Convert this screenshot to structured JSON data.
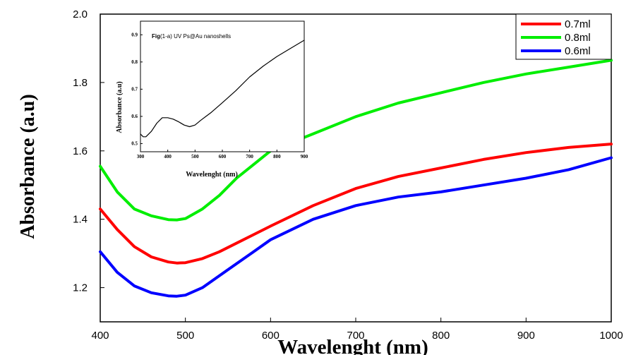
{
  "chart_data": [
    {
      "type": "line",
      "title": "",
      "xlabel": "Wavelenght (nm)",
      "ylabel": "Absorbance (a.u)",
      "xlim": [
        400,
        1000
      ],
      "ylim": [
        1.1,
        2.0
      ],
      "x_ticks": [
        "400",
        "500",
        "600",
        "700",
        "800",
        "900",
        "1000"
      ],
      "y_ticks": [
        "1.2",
        "1.4",
        "1.6",
        "1.8",
        "2.0"
      ],
      "grid": false,
      "legend_position": "top-right",
      "x": [
        400,
        420,
        440,
        460,
        480,
        490,
        500,
        520,
        540,
        560,
        580,
        600,
        650,
        700,
        750,
        800,
        850,
        900,
        950,
        1000
      ],
      "series": [
        {
          "name": "0.7ml",
          "color": "#ff0000",
          "values": [
            1.43,
            1.37,
            1.32,
            1.29,
            1.275,
            1.272,
            1.273,
            1.285,
            1.305,
            1.33,
            1.355,
            1.38,
            1.44,
            1.49,
            1.525,
            1.55,
            1.575,
            1.595,
            1.61,
            1.62
          ]
        },
        {
          "name": "0.8ml",
          "color": "#00ee00",
          "values": [
            1.555,
            1.48,
            1.43,
            1.41,
            1.399,
            1.398,
            1.402,
            1.43,
            1.47,
            1.52,
            1.56,
            1.6,
            1.65,
            1.7,
            1.74,
            1.77,
            1.8,
            1.825,
            1.845,
            1.865
          ]
        },
        {
          "name": "0.6ml",
          "color": "#0000ff",
          "values": [
            1.305,
            1.245,
            1.205,
            1.185,
            1.176,
            1.175,
            1.178,
            1.2,
            1.235,
            1.27,
            1.305,
            1.34,
            1.4,
            1.44,
            1.465,
            1.48,
            1.5,
            1.52,
            1.545,
            1.58
          ]
        }
      ]
    },
    {
      "type": "line",
      "title": "Fig(1-a) UV Ps@Au nanoshells",
      "title_bold_part": "Fig",
      "title_rest": "(1-a) UV Ps@Au nanoshells",
      "xlabel": "Wavelenght (nm)",
      "ylabel": "Absorbance (a.u)",
      "xlim": [
        300,
        900
      ],
      "ylim": [
        0.47,
        0.95
      ],
      "x_ticks": [
        "300",
        "400",
        "500",
        "600",
        "700",
        "800",
        "900"
      ],
      "y_ticks": [
        "0.5",
        "0.6",
        "0.7",
        "0.8",
        "0.9"
      ],
      "x": [
        300,
        310,
        320,
        340,
        360,
        380,
        400,
        420,
        440,
        460,
        480,
        500,
        520,
        540,
        560,
        600,
        650,
        700,
        750,
        800,
        850,
        900
      ],
      "series": [
        {
          "color": "#000000",
          "values": [
            0.535,
            0.525,
            0.525,
            0.545,
            0.575,
            0.595,
            0.595,
            0.59,
            0.58,
            0.568,
            0.562,
            0.568,
            0.585,
            0.6,
            0.615,
            0.65,
            0.695,
            0.745,
            0.785,
            0.82,
            0.85,
            0.88
          ]
        }
      ]
    }
  ]
}
